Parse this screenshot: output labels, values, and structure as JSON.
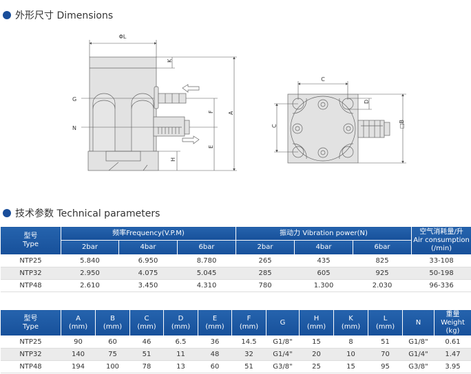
{
  "sections": {
    "dimensions": "外形尺寸 Dimensions",
    "parameters": "技术参数 Technical parameters"
  },
  "colors": {
    "accent": "#1a4e9a",
    "table_header": "#1d5aa6",
    "row_alt": "#ebebeb"
  },
  "drawing_labels": {
    "phiL": "ΦL",
    "K": "K",
    "G": "G",
    "N": "N",
    "F": "F",
    "A": "A",
    "E": "E",
    "H": "H",
    "C_top": "C",
    "C_left": "C",
    "D": "D",
    "B": "□B"
  },
  "table1": {
    "type_cn": "型号",
    "type_en": "Type",
    "freq": "频率Frequency(V.P.M)",
    "power": "振动力 Vibration power(N)",
    "air_cn": "空气消耗量/升",
    "air_en": "Air consumption",
    "air_unit": "(/min)",
    "pressures": [
      "2bar",
      "4bar",
      "6bar",
      "2bar",
      "4bar",
      "6bar"
    ],
    "rows": [
      [
        "NTP25",
        "5.840",
        "6.950",
        "8.780",
        "265",
        "435",
        "825",
        "33-108"
      ],
      [
        "NTP32",
        "2.950",
        "4.075",
        "5.045",
        "285",
        "605",
        "925",
        "50-198"
      ],
      [
        "NTP48",
        "2.610",
        "3.450",
        "4.310",
        "780",
        "1.300",
        "2.030",
        "96-336"
      ]
    ]
  },
  "table2": {
    "headers": [
      [
        "型号",
        "Type"
      ],
      [
        "A",
        "(mm)"
      ],
      [
        "B",
        "(mm)"
      ],
      [
        "C",
        "(mm)"
      ],
      [
        "D",
        "(mm)"
      ],
      [
        "E",
        "(mm)"
      ],
      [
        "F",
        "(mm)"
      ],
      [
        "G",
        ""
      ],
      [
        "H",
        "(mm)"
      ],
      [
        "K",
        "(mm)"
      ],
      [
        "L",
        "(mm)"
      ],
      [
        "N",
        ""
      ],
      [
        "重量",
        "Weight",
        "(kg)"
      ]
    ],
    "rows": [
      [
        "NTP25",
        "90",
        "60",
        "46",
        "6.5",
        "36",
        "14.5",
        "G1/8\"",
        "15",
        "8",
        "51",
        "G1/8\"",
        "0.61"
      ],
      [
        "NTP32",
        "140",
        "75",
        "51",
        "11",
        "48",
        "32",
        "G1/4\"",
        "20",
        "10",
        "70",
        "G1/4\"",
        "1.47"
      ],
      [
        "NTP48",
        "194",
        "100",
        "78",
        "13",
        "60",
        "51",
        "G3/8\"",
        "25",
        "15",
        "95",
        "G3/8\"",
        "3.95"
      ]
    ]
  }
}
